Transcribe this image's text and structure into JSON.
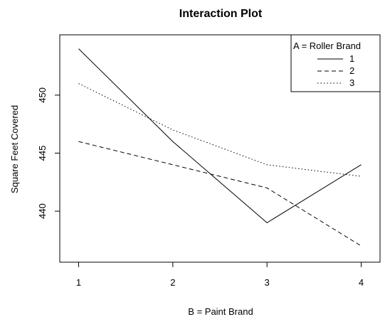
{
  "chart_data": {
    "type": "line",
    "title": "Interaction Plot",
    "xlabel": "B = Paint Brand",
    "ylabel": "Square Feet Covered",
    "categories": [
      "1",
      "2",
      "3",
      "4"
    ],
    "x": [
      1,
      2,
      3,
      4
    ],
    "xlim": [
      0.8,
      4.2
    ],
    "ylim": [
      435.6,
      455.2
    ],
    "yticks": [
      440,
      445,
      450
    ],
    "grid": false,
    "legend": {
      "title": "A = Roller Brand",
      "placement": "top-right"
    },
    "series": [
      {
        "name": "1",
        "line_style": "solid",
        "values": [
          454,
          446,
          439,
          444
        ]
      },
      {
        "name": "2",
        "line_style": "dashed",
        "values": [
          446,
          444,
          442,
          437
        ]
      },
      {
        "name": "3",
        "line_style": "dotted",
        "values": [
          451,
          447,
          444,
          443
        ]
      }
    ],
    "colors": {
      "lines": "#000000",
      "frame": "#000000"
    }
  }
}
